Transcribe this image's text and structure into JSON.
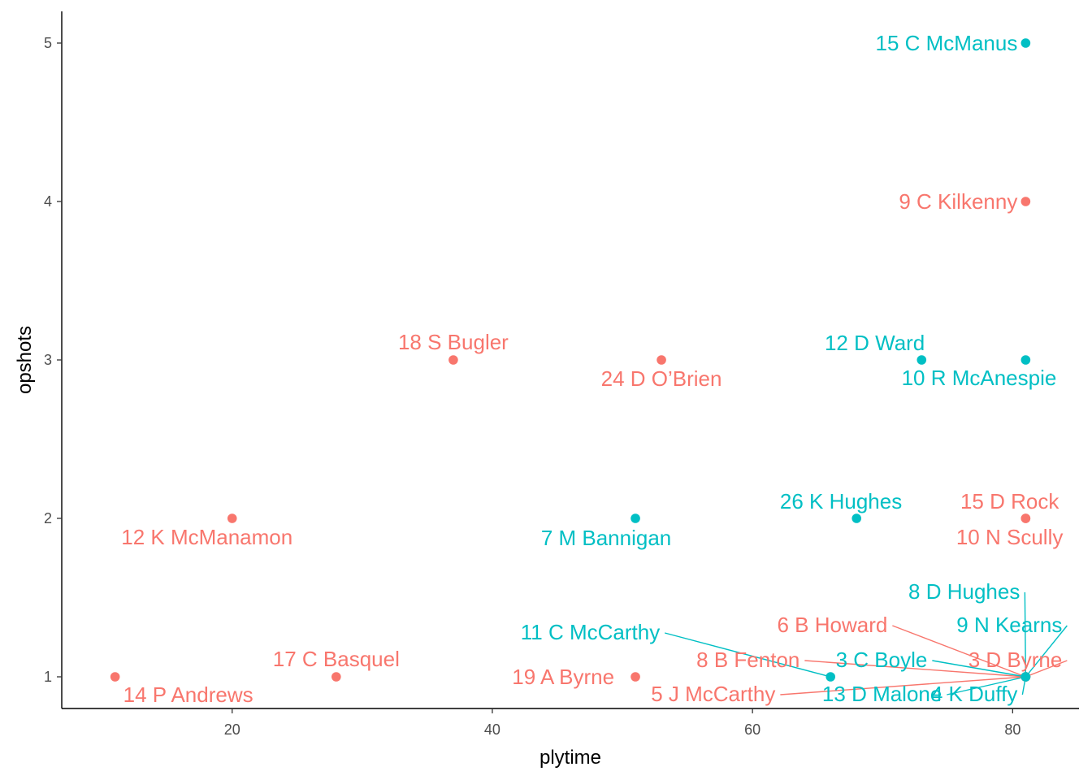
{
  "chart_data": {
    "type": "scatter",
    "title": "",
    "xlabel": "plytime",
    "ylabel": "opshots",
    "xlim": [
      6.9,
      85.1
    ],
    "ylim": [
      0.8,
      5.2
    ],
    "x_ticks": [
      20,
      40,
      60,
      80
    ],
    "y_ticks": [
      1,
      2,
      3,
      4,
      5
    ],
    "grid": false,
    "legend": "none",
    "colors": {
      "group_a": "#F8766D",
      "group_b": "#00BFC4"
    },
    "points": [
      {
        "label": "15  C McManus",
        "x": 81,
        "y": 5,
        "group": "group_b"
      },
      {
        "label": "9  C Kilkenny",
        "x": 81,
        "y": 4,
        "group": "group_a"
      },
      {
        "label": "18  S Bugler",
        "x": 37,
        "y": 3,
        "group": "group_a"
      },
      {
        "label": "24  D O’Brien",
        "x": 53,
        "y": 3,
        "group": "group_a"
      },
      {
        "label": "12  D Ward",
        "x": 73,
        "y": 3,
        "group": "group_b"
      },
      {
        "label": "10  R McAnespie",
        "x": 81,
        "y": 3,
        "group": "group_b"
      },
      {
        "label": "12  K McManamon",
        "x": 20,
        "y": 2,
        "group": "group_a"
      },
      {
        "label": "7  M Bannigan",
        "x": 51,
        "y": 2,
        "group": "group_b"
      },
      {
        "label": "26  K Hughes",
        "x": 68,
        "y": 2,
        "group": "group_b"
      },
      {
        "label": "15  D Rock",
        "x": 81,
        "y": 2,
        "group": "group_a"
      },
      {
        "label": "10  N Scully",
        "x": 81,
        "y": 2,
        "group": "group_a"
      },
      {
        "label": "14  P Andrews",
        "x": 11,
        "y": 1,
        "group": "group_a"
      },
      {
        "label": "17  C Basquel",
        "x": 28,
        "y": 1,
        "group": "group_a"
      },
      {
        "label": "19 A Byrne",
        "x": 51,
        "y": 1,
        "group": "group_a"
      },
      {
        "label": "11  C McCarthy",
        "x": 66,
        "y": 1,
        "group": "group_b"
      },
      {
        "label": "8  D Hughes",
        "x": 81,
        "y": 1,
        "group": "group_b"
      },
      {
        "label": "9  N Kearns",
        "x": 81,
        "y": 1,
        "group": "group_b"
      },
      {
        "label": "6  B Howard",
        "x": 81,
        "y": 1,
        "group": "group_a"
      },
      {
        "label": "8  B Fenton",
        "x": 81,
        "y": 1,
        "group": "group_a"
      },
      {
        "label": "3  C Boyle",
        "x": 81,
        "y": 1,
        "group": "group_b"
      },
      {
        "label": "3  D Byrne",
        "x": 81,
        "y": 1,
        "group": "group_a"
      },
      {
        "label": "5  J McCarthy",
        "x": 81,
        "y": 1,
        "group": "group_a"
      },
      {
        "label": "13  D Malone",
        "x": 81,
        "y": 1,
        "group": "group_b"
      },
      {
        "label": "4  K Duffy",
        "x": 81,
        "y": 1,
        "group": "group_b"
      }
    ]
  }
}
